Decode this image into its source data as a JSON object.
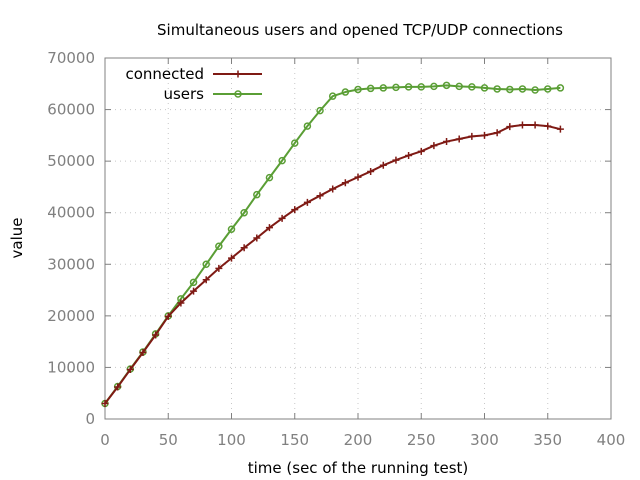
{
  "chart_data": {
    "type": "line",
    "title": "Simultaneous users and opened TCP/UDP connections",
    "xlabel": "time (sec of the running test)",
    "ylabel": "value",
    "xlim": [
      0,
      400
    ],
    "ylim": [
      0,
      70000
    ],
    "xticks": [
      0,
      50,
      100,
      150,
      200,
      250,
      300,
      350,
      400
    ],
    "yticks": [
      0,
      10000,
      20000,
      30000,
      40000,
      50000,
      60000,
      70000
    ],
    "grid": true,
    "legend_position": "top-left",
    "x": [
      0,
      10,
      20,
      30,
      40,
      50,
      60,
      70,
      80,
      90,
      100,
      110,
      120,
      130,
      140,
      150,
      160,
      170,
      180,
      190,
      200,
      210,
      220,
      230,
      240,
      250,
      260,
      270,
      280,
      290,
      300,
      310,
      320,
      330,
      340,
      350,
      360
    ],
    "series": [
      {
        "name": "connected",
        "color": "#7f1a14",
        "marker": "plus",
        "values": [
          3000,
          6200,
          9600,
          12900,
          16300,
          19900,
          22500,
          24800,
          27000,
          29200,
          31200,
          33200,
          35100,
          37100,
          38900,
          40600,
          42000,
          43300,
          44600,
          45800,
          46900,
          48000,
          49200,
          50200,
          51100,
          51900,
          53000,
          53800,
          54300,
          54800,
          55000,
          55500,
          56700,
          57000,
          57000,
          56800,
          56200
        ]
      },
      {
        "name": "users",
        "color": "#5a9e35",
        "marker": "circle",
        "values": [
          3000,
          6300,
          9700,
          13000,
          16500,
          20000,
          23300,
          26500,
          30000,
          33500,
          36800,
          40000,
          43500,
          46800,
          50100,
          53500,
          56800,
          59800,
          62600,
          63400,
          63900,
          64100,
          64200,
          64300,
          64400,
          64400,
          64500,
          64700,
          64500,
          64400,
          64200,
          64000,
          63900,
          64000,
          63800,
          64000,
          64200
        ]
      }
    ]
  }
}
